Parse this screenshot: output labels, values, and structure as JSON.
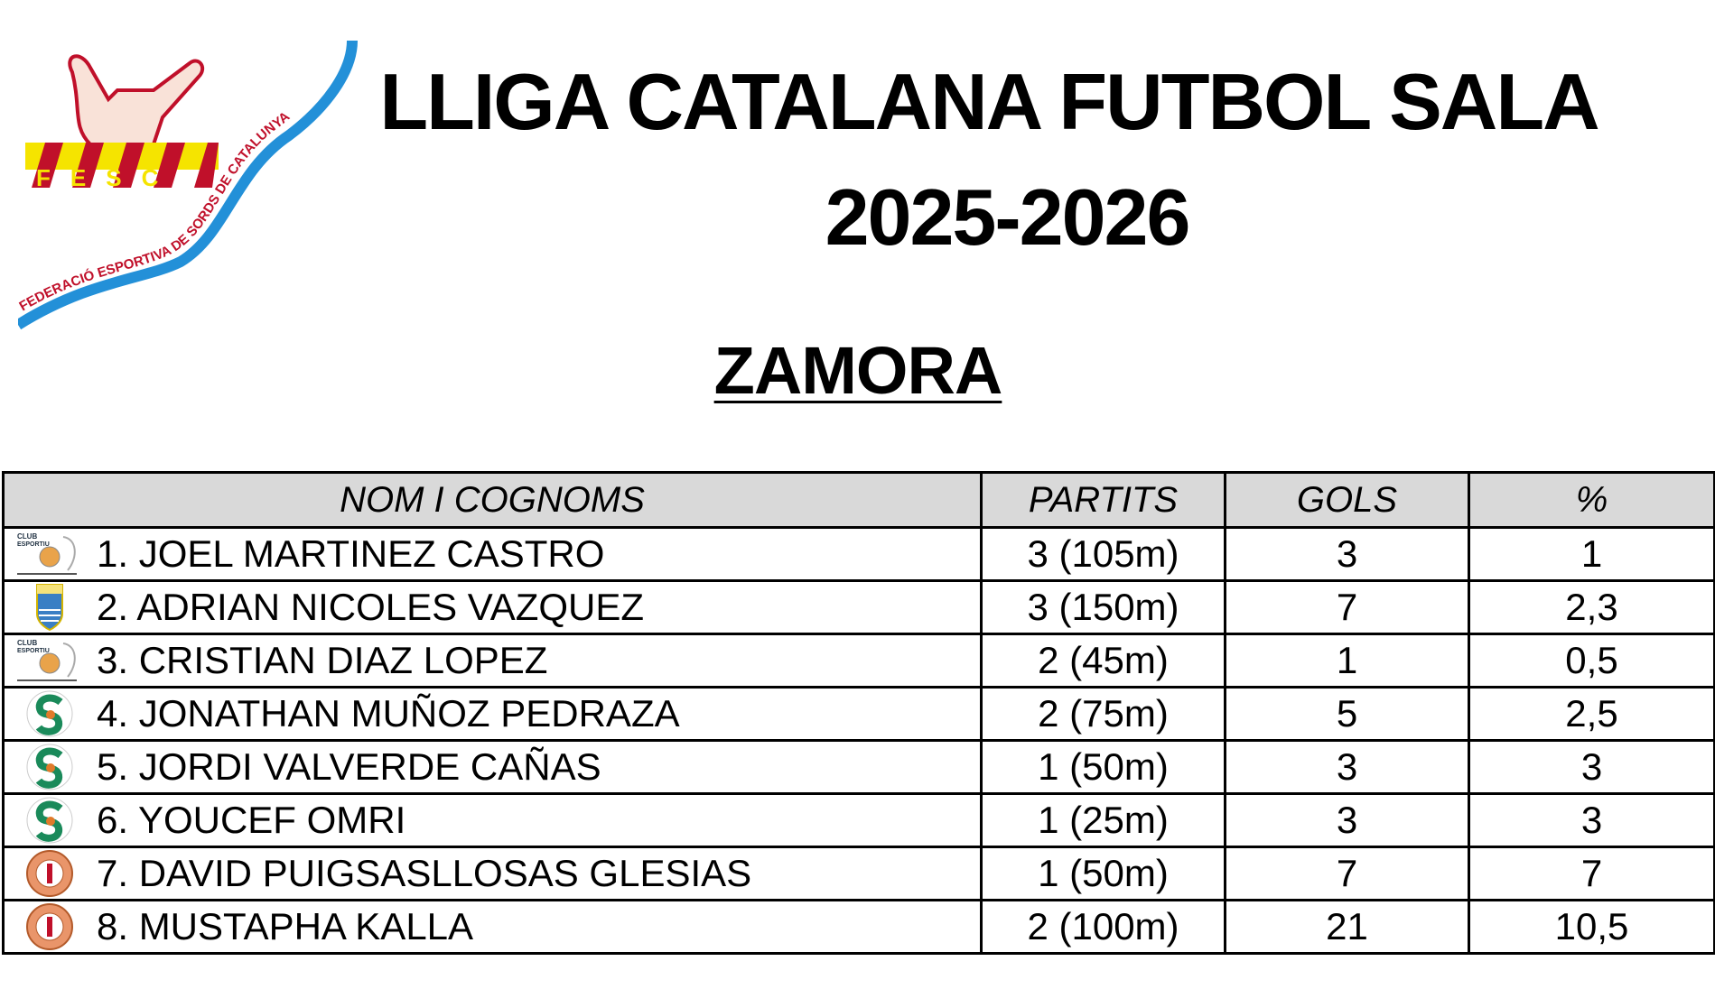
{
  "header": {
    "title_line1": "LLIGA CATALANA FUTBOL SALA",
    "title_line2": "2025-2026",
    "team": "ZAMORA",
    "logo": {
      "acronym": "FESC",
      "text": "FEDERACIÓ ESPORTIVA DE SORDS DE CATALUNYA",
      "colors": {
        "red": "#c0102a",
        "yellow": "#f5e400",
        "blue": "#2390d8"
      }
    }
  },
  "table": {
    "columns": [
      "NOM I COGNOMS",
      "PARTITS",
      "GOLS",
      "%"
    ],
    "rows": [
      {
        "club_icon": "casal-sords-barcelona-crest",
        "name": "1. JOEL MARTINEZ CASTRO",
        "partits": "3 (105m)",
        "gols": "3",
        "pct": "1"
      },
      {
        "club_icon": "blue-shield-crest",
        "name": "2. ADRIAN NICOLES VAZQUEZ",
        "partits": "3 (150m)",
        "gols": "7",
        "pct": "2,3"
      },
      {
        "club_icon": "casal-sords-barcelona-crest",
        "name": "3. CRISTIAN DIAZ LOPEZ",
        "partits": "2 (45m)",
        "gols": "1",
        "pct": "0,5"
      },
      {
        "club_icon": "green-s-barcelona-crest",
        "name": "4. JONATHAN MUÑOZ PEDRAZA",
        "partits": "2 (75m)",
        "gols": "5",
        "pct": "2,5"
      },
      {
        "club_icon": "green-s-barcelona-crest",
        "name": "5. JORDI VALVERDE CAÑAS",
        "partits": "1 (50m)",
        "gols": "3",
        "pct": "3"
      },
      {
        "club_icon": "green-s-barcelona-crest",
        "name": "6. YOUCEF OMRI",
        "partits": "1 (25m)",
        "gols": "3",
        "pct": "3"
      },
      {
        "club_icon": "orange-round-crest",
        "name": "7. DAVID PUIGSASLLOSAS GLESIAS",
        "partits": "1 (50m)",
        "gols": "7",
        "pct": "7"
      },
      {
        "club_icon": "orange-round-crest",
        "name": "8. MUSTAPHA KALLA",
        "partits": "2 (100m)",
        "gols": "21",
        "pct": "10,5"
      }
    ]
  }
}
